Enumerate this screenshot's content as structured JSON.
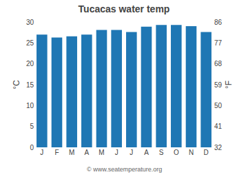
{
  "chart_data": {
    "type": "bar",
    "title": "Tucacas water temp",
    "categories": [
      "J",
      "F",
      "M",
      "A",
      "M",
      "J",
      "J",
      "A",
      "S",
      "O",
      "N",
      "D"
    ],
    "values": [
      27.0,
      26.3,
      26.6,
      27.0,
      28.1,
      28.1,
      27.6,
      28.9,
      29.3,
      29.3,
      29.0,
      27.6
    ],
    "ylabel": "°C",
    "ylim": [
      0,
      30
    ],
    "yticks": [
      0,
      5,
      10,
      15,
      20,
      25,
      30
    ],
    "y2label": "°F",
    "y2lim": [
      32,
      86
    ],
    "y2ticks": [
      32,
      41,
      50,
      59,
      68,
      77,
      86
    ],
    "annotations": [
      "© www.seatemperature.org"
    ],
    "grid": false
  }
}
